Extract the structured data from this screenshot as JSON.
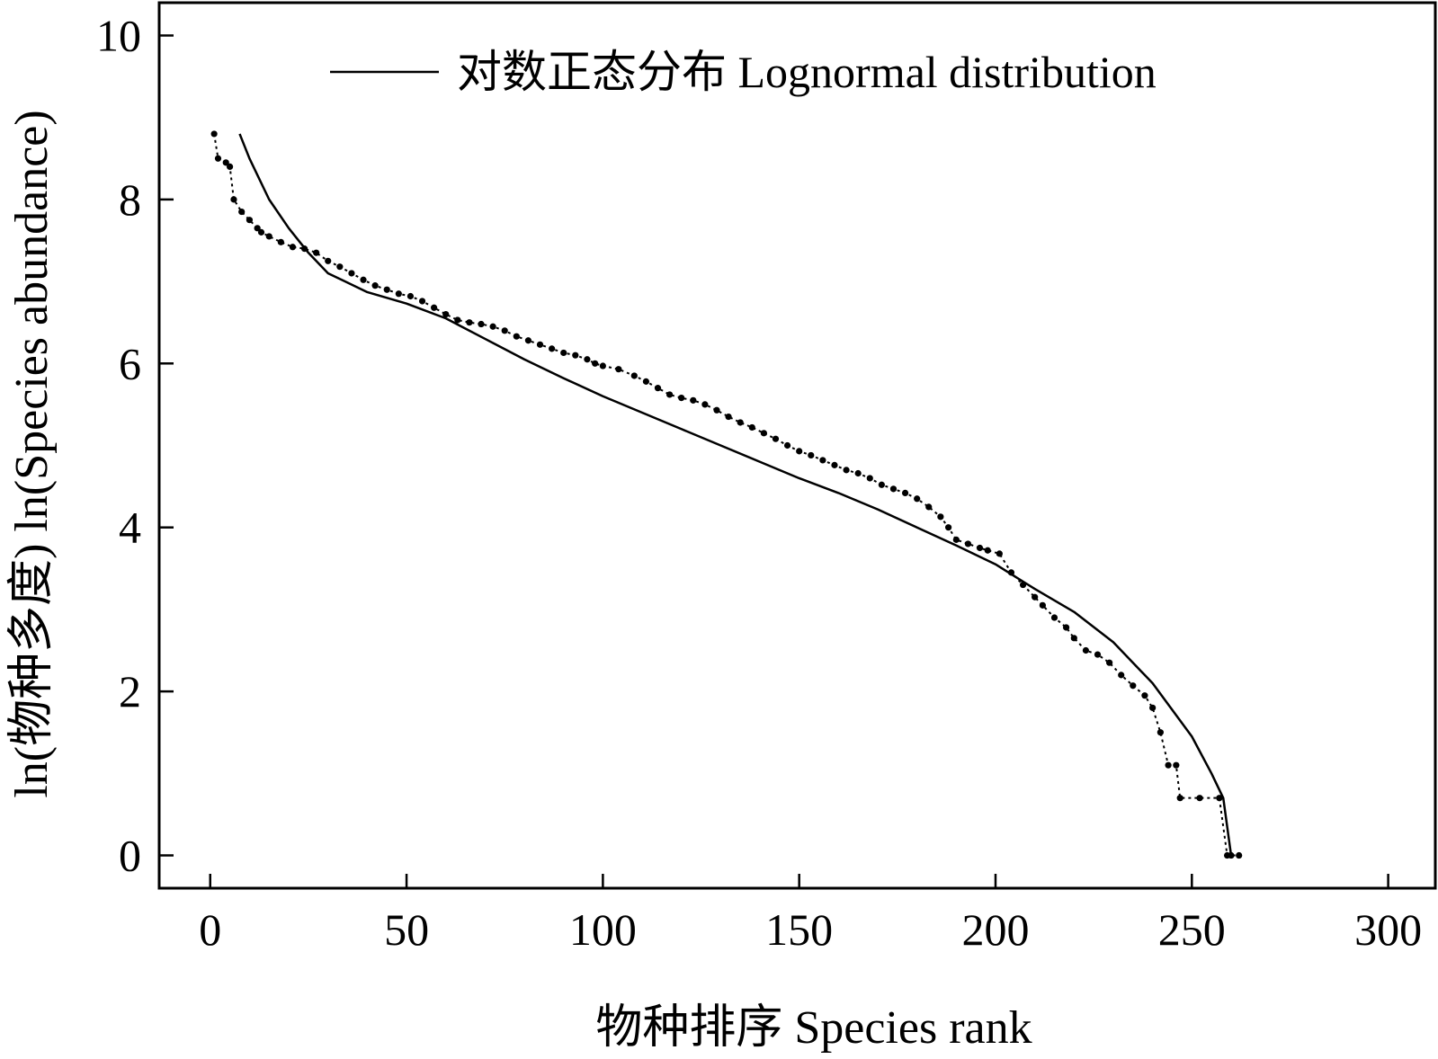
{
  "chart_data": {
    "type": "scatter",
    "xlabel": "物种排序 Species rank",
    "ylabel": "ln(物种多度) ln(Species abundance)",
    "xlim": [
      -13,
      312
    ],
    "ylim": [
      -0.4,
      10.4
    ],
    "xticks": [
      0,
      50,
      100,
      150,
      200,
      250,
      300
    ],
    "xtick_labels": [
      "0",
      "50",
      "100",
      "150",
      "200",
      "250",
      "300"
    ],
    "yticks": [
      0,
      2,
      4,
      6,
      8,
      10
    ],
    "ytick_labels": [
      "0",
      "2",
      "4",
      "6",
      "8",
      "10"
    ],
    "legend_position": "top-right",
    "grid": false,
    "series": [
      {
        "name": "",
        "kind": "observed-points",
        "color": "#000000",
        "values": [
          [
            1,
            8.8
          ],
          [
            2,
            8.5
          ],
          [
            4,
            8.45
          ],
          [
            5,
            8.4
          ],
          [
            6,
            8.0
          ],
          [
            8,
            7.85
          ],
          [
            10,
            7.75
          ],
          [
            12,
            7.65
          ],
          [
            13,
            7.6
          ],
          [
            15,
            7.55
          ],
          [
            18,
            7.48
          ],
          [
            21,
            7.42
          ],
          [
            24,
            7.4
          ],
          [
            27,
            7.35
          ],
          [
            30,
            7.25
          ],
          [
            33,
            7.18
          ],
          [
            36,
            7.1
          ],
          [
            39,
            7.02
          ],
          [
            42,
            6.95
          ],
          [
            45,
            6.9
          ],
          [
            48,
            6.85
          ],
          [
            51,
            6.82
          ],
          [
            54,
            6.76
          ],
          [
            57,
            6.68
          ],
          [
            60,
            6.6
          ],
          [
            63,
            6.53
          ],
          [
            66,
            6.5
          ],
          [
            69,
            6.48
          ],
          [
            72,
            6.45
          ],
          [
            75,
            6.4
          ],
          [
            78,
            6.33
          ],
          [
            81,
            6.28
          ],
          [
            84,
            6.23
          ],
          [
            87,
            6.18
          ],
          [
            90,
            6.13
          ],
          [
            93,
            6.1
          ],
          [
            96,
            6.05
          ],
          [
            98,
            6.0
          ],
          [
            100,
            5.97
          ],
          [
            104,
            5.93
          ],
          [
            108,
            5.85
          ],
          [
            111,
            5.78
          ],
          [
            114,
            5.7
          ],
          [
            117,
            5.62
          ],
          [
            120,
            5.58
          ],
          [
            123,
            5.55
          ],
          [
            126,
            5.5
          ],
          [
            129,
            5.43
          ],
          [
            132,
            5.35
          ],
          [
            135,
            5.28
          ],
          [
            138,
            5.22
          ],
          [
            141,
            5.15
          ],
          [
            144,
            5.08
          ],
          [
            147,
            5.0
          ],
          [
            150,
            4.93
          ],
          [
            153,
            4.88
          ],
          [
            156,
            4.82
          ],
          [
            159,
            4.76
          ],
          [
            162,
            4.7
          ],
          [
            165,
            4.66
          ],
          [
            168,
            4.6
          ],
          [
            171,
            4.52
          ],
          [
            174,
            4.47
          ],
          [
            177,
            4.42
          ],
          [
            180,
            4.35
          ],
          [
            183,
            4.25
          ],
          [
            186,
            4.13
          ],
          [
            188,
            4.0
          ],
          [
            190,
            3.85
          ],
          [
            193,
            3.8
          ],
          [
            196,
            3.75
          ],
          [
            198,
            3.72
          ],
          [
            201,
            3.68
          ],
          [
            204,
            3.45
          ],
          [
            207,
            3.3
          ],
          [
            210,
            3.15
          ],
          [
            212,
            3.05
          ],
          [
            215,
            2.9
          ],
          [
            218,
            2.78
          ],
          [
            220,
            2.65
          ],
          [
            223,
            2.5
          ],
          [
            226,
            2.45
          ],
          [
            229,
            2.35
          ],
          [
            232,
            2.2
          ],
          [
            235,
            2.07
          ],
          [
            238,
            1.95
          ],
          [
            240,
            1.8
          ],
          [
            242,
            1.5
          ],
          [
            244,
            1.1
          ],
          [
            246,
            1.1
          ],
          [
            247,
            0.7
          ],
          [
            252,
            0.7
          ],
          [
            257,
            0.7
          ],
          [
            259,
            0.0
          ],
          [
            260,
            0.0
          ],
          [
            262,
            0.0
          ]
        ]
      },
      {
        "name": "对数正态分布 Lognormal distribution",
        "kind": "fitted-line",
        "color": "#000000",
        "values": [
          [
            7.5,
            8.8
          ],
          [
            10,
            8.5
          ],
          [
            15,
            8.0
          ],
          [
            20,
            7.65
          ],
          [
            25,
            7.35
          ],
          [
            30,
            7.1
          ],
          [
            40,
            6.87
          ],
          [
            50,
            6.73
          ],
          [
            60,
            6.55
          ],
          [
            70,
            6.3
          ],
          [
            80,
            6.05
          ],
          [
            90,
            5.82
          ],
          [
            100,
            5.6
          ],
          [
            110,
            5.4
          ],
          [
            120,
            5.2
          ],
          [
            130,
            5.0
          ],
          [
            140,
            4.8
          ],
          [
            150,
            4.6
          ],
          [
            160,
            4.42
          ],
          [
            170,
            4.22
          ],
          [
            180,
            4.0
          ],
          [
            190,
            3.78
          ],
          [
            200,
            3.55
          ],
          [
            210,
            3.25
          ],
          [
            220,
            2.97
          ],
          [
            230,
            2.6
          ],
          [
            240,
            2.1
          ],
          [
            250,
            1.45
          ],
          [
            255,
            1.0
          ],
          [
            258,
            0.7
          ],
          [
            260,
            0.0
          ]
        ]
      }
    ]
  }
}
